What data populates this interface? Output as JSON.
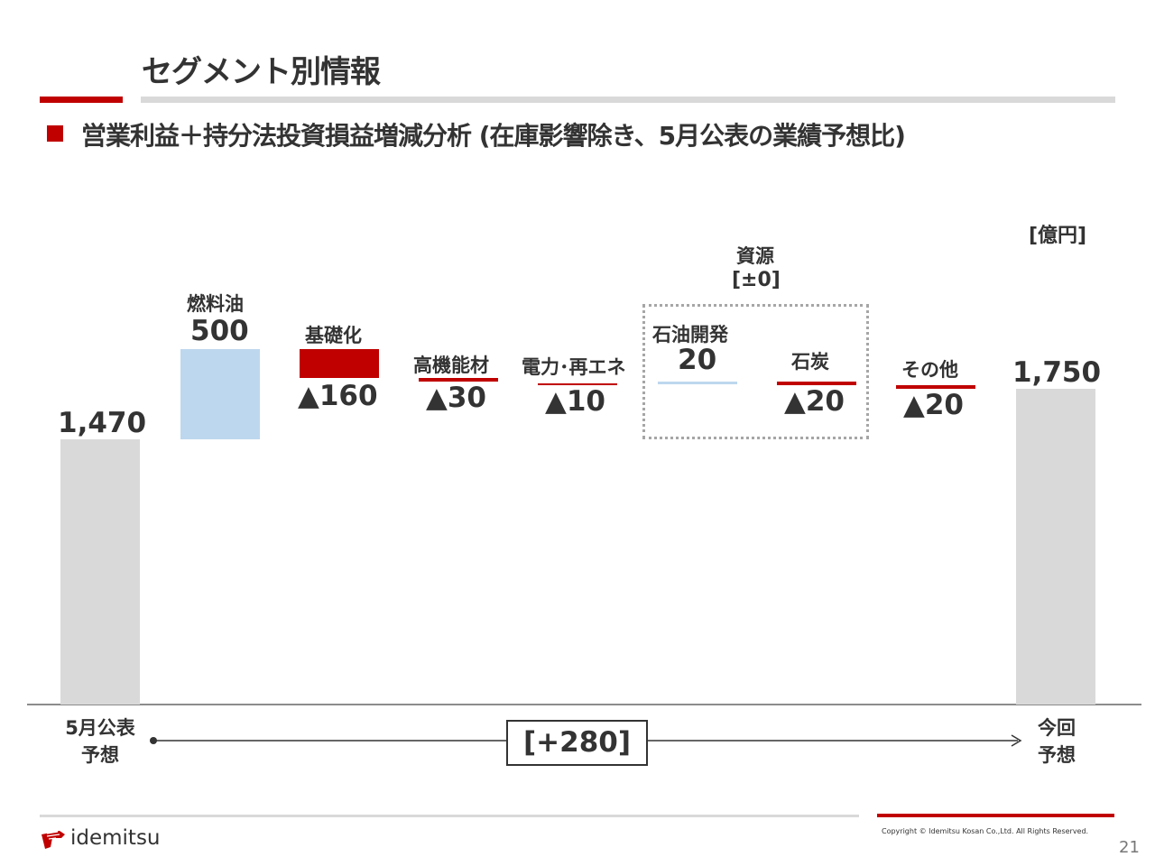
{
  "page": {
    "title": "セグメント別情報",
    "subtitle": "営業利益＋持分法投資損益増減分析 (在庫影響除き、5月公表の業績予想比)",
    "unit": "[億円]",
    "copyright": "Copyright © Idemitsu Kosan Co.,Ltd.  All Rights Reserved.",
    "page_number": "21",
    "logo_text": "idemitsu",
    "logo_icon": "idemitsu-apollo-icon"
  },
  "chart_data": {
    "type": "waterfall",
    "title": "",
    "ylim": [
      0,
      1900
    ],
    "steps": [
      {
        "name": "5月公表\n予想",
        "label_line1": "5月公表",
        "label_line2": "予想",
        "kind": "total",
        "value": 1470,
        "display": "1,470"
      },
      {
        "name": "燃料油",
        "kind": "increase",
        "value": 500,
        "display": "500"
      },
      {
        "name": "基礎化",
        "kind": "decrease",
        "value": -160,
        "display": "▲160"
      },
      {
        "name": "高機能材",
        "kind": "decrease",
        "value": -30,
        "display": "▲30"
      },
      {
        "name": "電力･再エネ",
        "kind": "decrease",
        "value": -10,
        "display": "▲10"
      },
      {
        "name": "石油開発",
        "kind": "increase",
        "value": 20,
        "display": "20"
      },
      {
        "name": "石炭",
        "kind": "decrease",
        "value": -20,
        "display": "▲20"
      },
      {
        "name": "その他",
        "kind": "decrease",
        "value": -20,
        "display": "▲20"
      },
      {
        "name": "今回\n予想",
        "label_line1": "今回",
        "label_line2": "予想",
        "kind": "total",
        "value": 1750,
        "display": "1,750"
      }
    ],
    "group": {
      "name": "資源",
      "total": "[±0]",
      "members": [
        "石油開発",
        "石炭"
      ]
    },
    "total_change": "[+280]",
    "colors": {
      "total": "#d9d9d9",
      "increase": "#bdd7ee",
      "decrease": "#c00000",
      "axis": "#333333"
    }
  }
}
